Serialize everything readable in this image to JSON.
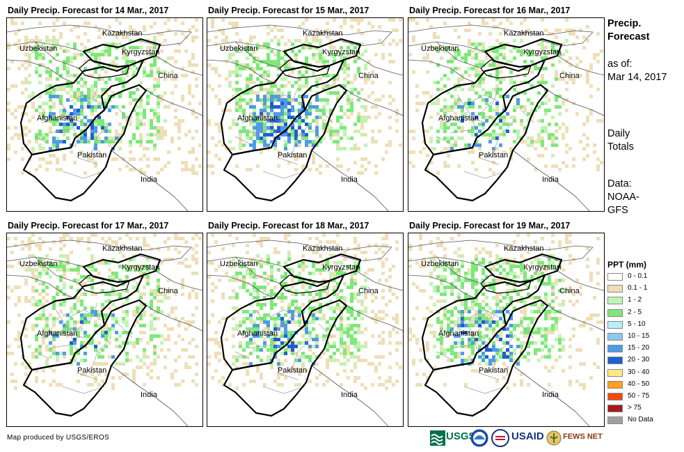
{
  "panels": [
    {
      "title": "Daily Precip. Forecast for 14 Mar., 2017",
      "seed": 14,
      "light": 520,
      "green": 260,
      "lgreen": 140,
      "blue": 60
    },
    {
      "title": "Daily Precip. Forecast for 15 Mar., 2017",
      "seed": 15,
      "light": 420,
      "green": 300,
      "lgreen": 170,
      "blue": 120
    },
    {
      "title": "Daily Precip. Forecast for 16 Mar., 2017",
      "seed": 16,
      "light": 380,
      "green": 220,
      "lgreen": 120,
      "blue": 25
    },
    {
      "title": "Daily Precip. Forecast for 17 Mar., 2017",
      "seed": 17,
      "light": 480,
      "green": 220,
      "lgreen": 110,
      "blue": 25
    },
    {
      "title": "Daily Precip. Forecast for 18 Mar., 2017",
      "seed": 18,
      "light": 480,
      "green": 300,
      "lgreen": 160,
      "blue": 50
    },
    {
      "title": "Daily Precip. Forecast for 19 Mar., 2017",
      "seed": 19,
      "light": 380,
      "green": 320,
      "lgreen": 160,
      "blue": 60
    }
  ],
  "country_labels": [
    "Kazakhstan",
    "Uzbekistan",
    "Kyrgyzstan",
    "China",
    "Afghanistan",
    "Pakistan",
    "India"
  ],
  "side": {
    "title_line1": "Precip.",
    "title_line2": "Forecast",
    "asof_line1": "as of:",
    "asof_line2": "Mar 14, 2017",
    "daily_line1": "Daily",
    "daily_line2": "Totals",
    "data_line1": "Data:",
    "data_line2": "NOAA-",
    "data_line3": "GFS"
  },
  "legend": {
    "title": "PPT (mm)",
    "items": [
      {
        "label": "0 - 0.1",
        "color": "#ffffff"
      },
      {
        "label": "0.1 - 1",
        "color": "#eedfb8"
      },
      {
        "label": "1 - 2",
        "color": "#bff5b0"
      },
      {
        "label": "2 - 5",
        "color": "#7fe87a"
      },
      {
        "label": "5 - 10",
        "color": "#b8f0f5"
      },
      {
        "label": "10 - 15",
        "color": "#8cc8f0"
      },
      {
        "label": "15 - 20",
        "color": "#4e9be8"
      },
      {
        "label": "20 - 30",
        "color": "#1f5fd0"
      },
      {
        "label": "30 - 40",
        "color": "#ffe88a"
      },
      {
        "label": "40 - 50",
        "color": "#ffa020"
      },
      {
        "label": "50 - 75",
        "color": "#f24a10"
      },
      {
        "label": "> 75",
        "color": "#a8181c"
      },
      {
        "label": "No Data",
        "color": "#a0a0a0"
      }
    ]
  },
  "credit": "Map produced by USGS/EROS",
  "logos": {
    "usgs": "USGS",
    "usaid": "USAID",
    "fewsnet": "FEWS NET"
  }
}
